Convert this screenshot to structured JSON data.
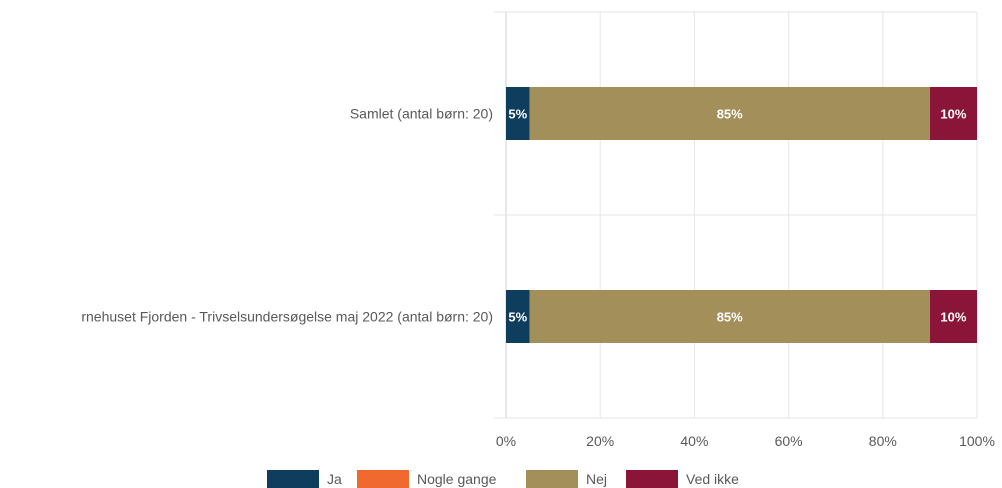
{
  "chart_data": {
    "type": "bar",
    "orientation": "horizontal",
    "stacked": true,
    "categories": [
      "Samlet (antal børn: 20)",
      "rnehuset Fjorden - Trivselsundersøgelse maj 2022 (antal børn: 20)"
    ],
    "series": [
      {
        "name": "Ja",
        "values": [
          5,
          5
        ],
        "color": "#0e3d5e"
      },
      {
        "name": "Nogle gange",
        "values": [
          0,
          0
        ],
        "color": "#f06a30"
      },
      {
        "name": "Nej",
        "values": [
          85,
          85
        ],
        "color": "#a38f5a"
      },
      {
        "name": "Ved ikke",
        "values": [
          10,
          10
        ],
        "color": "#8a1538"
      }
    ],
    "xlim": [
      0,
      100
    ],
    "x_ticks": [
      "0%",
      "20%",
      "40%",
      "60%",
      "80%",
      "100%"
    ],
    "data_labels": [
      [
        "5%",
        "",
        "85%",
        "10%"
      ],
      [
        "5%",
        "",
        "85%",
        "10%"
      ]
    ],
    "grid": true,
    "legend": "bottom"
  }
}
